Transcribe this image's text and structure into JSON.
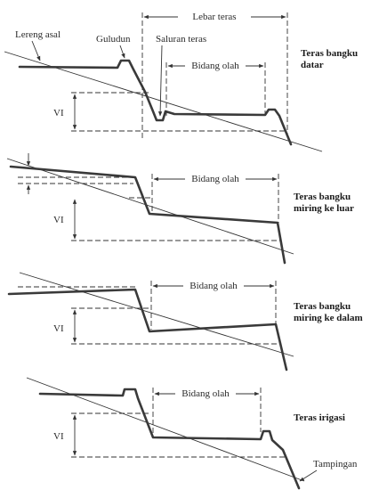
{
  "panels": [
    {
      "title_lines": [
        "Teras bangku",
        "datar"
      ],
      "labels": {
        "lereng_asal": "Lereng asal",
        "guludun": "Guludun",
        "saluran_teras": "Saluran teras",
        "lebar_teras": "Lebar teras",
        "bidang_olah": "Bidang olah",
        "vi": "VI"
      }
    },
    {
      "title_lines": [
        "Teras bangku",
        "miring ke luar"
      ],
      "labels": {
        "bidang_olah": "Bidang olah",
        "vi": "VI"
      }
    },
    {
      "title_lines": [
        "Teras bangku",
        "miring ke dalam"
      ],
      "labels": {
        "bidang_olah": "Bidang olah",
        "vi": "VI"
      }
    },
    {
      "title_lines": [
        "Teras irigasi"
      ],
      "labels": {
        "bidang_olah": "Bidang olah",
        "vi": "VI",
        "tampingan": "Tampingan"
      }
    }
  ]
}
